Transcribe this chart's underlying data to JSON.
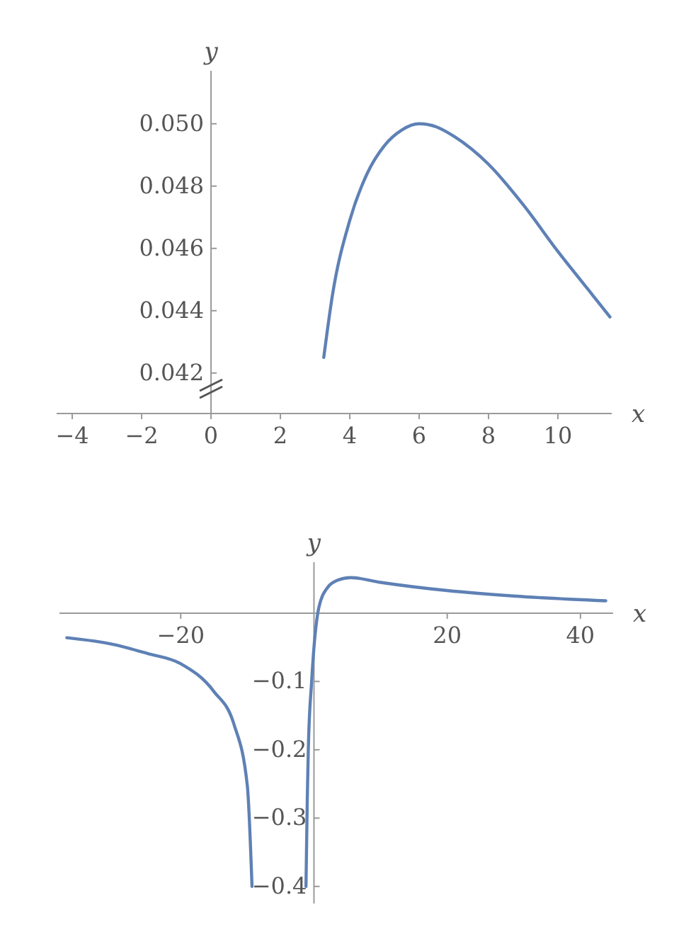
{
  "chart_data": [
    {
      "type": "line",
      "xlabel": "x",
      "ylabel": "y",
      "xlim": [
        -4.45,
        11.55
      ],
      "ylim": [
        0.0407,
        0.0517
      ],
      "xticks": [
        {
          "value": -4,
          "label": "−4"
        },
        {
          "value": -2,
          "label": "−2"
        },
        0,
        2,
        4,
        6,
        8,
        10
      ],
      "yticks": [
        {
          "value": 0.042,
          "label": "0.042"
        },
        {
          "value": 0.044,
          "label": "0.044"
        },
        {
          "value": 0.046,
          "label": "0.046"
        },
        {
          "value": 0.048,
          "label": "0.048"
        },
        {
          "value": 0.05,
          "label": "0.050"
        }
      ],
      "x": [
        3.25,
        3.5,
        4,
        4.5,
        5,
        5.5,
        6,
        6.5,
        7,
        8,
        9,
        10,
        11,
        11.5
      ],
      "series": [
        {
          "color": "#5e81b5",
          "values": [
            0.0425,
            0.0445,
            0.0469,
            0.0484,
            0.0493,
            0.0498,
            0.05,
            0.0499,
            0.0496,
            0.0487,
            0.0474,
            0.0459,
            0.0445,
            0.0438
          ]
        }
      ]
    },
    {
      "type": "line",
      "xlabel": "x",
      "ylabel": "y",
      "xlim": [
        -38.2,
        44.9
      ],
      "ylim": [
        -0.425,
        0.0745
      ],
      "xticks": [
        {
          "value": -20,
          "label": "−20"
        },
        20,
        40
      ],
      "yticks": [
        {
          "value": -0.1,
          "label": "−0.1"
        },
        {
          "value": -0.2,
          "label": "−0.2"
        },
        {
          "value": -0.3,
          "label": "−0.3"
        },
        {
          "value": -0.4,
          "label": "−0.4"
        }
      ],
      "series": [
        {
          "color": "#5e81b5",
          "x": [
            -37.1,
            -30,
            -25,
            -20,
            -15,
            -12,
            -10,
            -9.3
          ],
          "values": [
            -0.036,
            -0.046,
            -0.059,
            -0.074,
            -0.115,
            -0.163,
            -0.253,
            -0.4
          ]
        },
        {
          "color": "#5e81b5",
          "x": [
            -1.2,
            -1,
            -0.85,
            -0.35,
            0,
            0.57,
            1,
            2,
            3.5,
            5.5,
            10,
            20,
            30,
            43.8
          ],
          "values": [
            -0.4,
            -0.27,
            -0.2,
            -0.1,
            -0.05,
            0,
            0.018,
            0.037,
            0.048,
            0.052,
            0.045,
            0.033,
            0.025,
            0.018
          ]
        }
      ]
    }
  ]
}
